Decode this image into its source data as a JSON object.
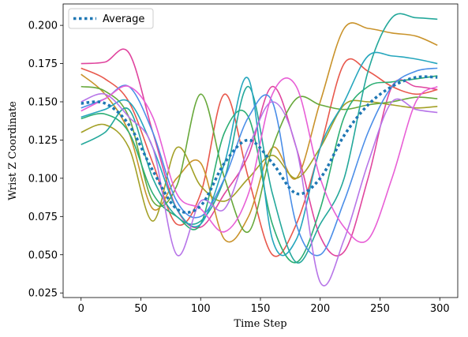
{
  "chart_data": {
    "type": "line",
    "title": "",
    "xlabel": "Time Step",
    "ylabel": "Wrist Z Coordinate",
    "xlim": [
      -15,
      315
    ],
    "ylim": [
      0.022,
      0.214
    ],
    "xticks": [
      0,
      50,
      100,
      150,
      200,
      250,
      300
    ],
    "yticks": [
      0.025,
      0.05,
      0.075,
      0.1,
      0.125,
      0.15,
      0.175,
      0.2
    ],
    "ytick_labels": [
      "0.025",
      "0.050",
      "0.075",
      "0.100",
      "0.125",
      "0.150",
      "0.175",
      "0.200"
    ],
    "grid": false,
    "legend": {
      "placement": "top-left",
      "entries": [
        "Average"
      ]
    },
    "average": {
      "name": "Average",
      "color": "#1f77b4",
      "style": "dotted",
      "x": [
        0,
        20,
        40,
        60,
        80,
        100,
        120,
        140,
        160,
        180,
        200,
        220,
        240,
        260,
        280,
        298
      ],
      "y": [
        0.149,
        0.149,
        0.135,
        0.105,
        0.08,
        0.082,
        0.11,
        0.125,
        0.11,
        0.09,
        0.1,
        0.128,
        0.148,
        0.16,
        0.166,
        0.166
      ]
    },
    "series": [
      {
        "color": "#e0459e",
        "x": [
          0,
          20,
          40,
          60,
          80,
          100,
          120,
          140,
          160,
          180,
          200,
          220,
          240,
          260,
          280,
          298
        ],
        "y": [
          0.175,
          0.176,
          0.182,
          0.13,
          0.08,
          0.068,
          0.09,
          0.115,
          0.16,
          0.12,
          0.062,
          0.052,
          0.1,
          0.16,
          0.16,
          0.158
        ]
      },
      {
        "color": "#e8584c",
        "x": [
          0,
          20,
          40,
          60,
          80,
          100,
          120,
          140,
          160,
          180,
          200,
          220,
          240,
          260,
          280,
          298
        ],
        "y": [
          0.172,
          0.165,
          0.15,
          0.11,
          0.07,
          0.09,
          0.155,
          0.1,
          0.05,
          0.07,
          0.12,
          0.175,
          0.17,
          0.16,
          0.155,
          0.158
        ]
      },
      {
        "color": "#c9932b",
        "x": [
          0,
          20,
          40,
          60,
          80,
          100,
          120,
          140,
          160,
          180,
          200,
          220,
          240,
          260,
          280,
          298
        ],
        "y": [
          0.168,
          0.155,
          0.13,
          0.08,
          0.1,
          0.11,
          0.06,
          0.075,
          0.12,
          0.1,
          0.15,
          0.198,
          0.198,
          0.195,
          0.193,
          0.187
        ]
      },
      {
        "color": "#a3a026",
        "x": [
          0,
          20,
          40,
          60,
          80,
          100,
          120,
          140,
          160,
          180,
          200,
          220,
          240,
          260,
          280,
          298
        ],
        "y": [
          0.13,
          0.135,
          0.12,
          0.072,
          0.12,
          0.095,
          0.085,
          0.1,
          0.115,
          0.1,
          0.12,
          0.148,
          0.15,
          0.148,
          0.146,
          0.147
        ]
      },
      {
        "color": "#67a83a",
        "x": [
          0,
          20,
          40,
          60,
          80,
          100,
          120,
          140,
          160,
          180,
          200,
          220,
          240,
          260,
          280,
          298
        ],
        "y": [
          0.16,
          0.157,
          0.14,
          0.085,
          0.095,
          0.155,
          0.1,
          0.065,
          0.12,
          0.152,
          0.148,
          0.145,
          0.148,
          0.15,
          0.153,
          0.152
        ]
      },
      {
        "color": "#2bae73",
        "x": [
          0,
          20,
          40,
          60,
          80,
          100,
          120,
          140,
          160,
          180,
          200,
          220,
          240,
          260,
          280,
          298
        ],
        "y": [
          0.139,
          0.142,
          0.13,
          0.09,
          0.075,
          0.07,
          0.13,
          0.14,
          0.07,
          0.045,
          0.08,
          0.14,
          0.16,
          0.163,
          0.165,
          0.167
        ]
      },
      {
        "color": "#24a89b",
        "x": [
          0,
          20,
          40,
          60,
          80,
          100,
          120,
          140,
          160,
          180,
          200,
          220,
          240,
          260,
          280,
          298
        ],
        "y": [
          0.122,
          0.13,
          0.145,
          0.1,
          0.075,
          0.072,
          0.1,
          0.16,
          0.09,
          0.045,
          0.07,
          0.1,
          0.17,
          0.205,
          0.205,
          0.204
        ]
      },
      {
        "color": "#25a6bd",
        "x": [
          0,
          20,
          40,
          60,
          80,
          100,
          120,
          140,
          160,
          180,
          200,
          220,
          240,
          260,
          280,
          298
        ],
        "y": [
          0.14,
          0.145,
          0.15,
          0.12,
          0.08,
          0.07,
          0.11,
          0.165,
          0.06,
          0.06,
          0.12,
          0.15,
          0.18,
          0.18,
          0.178,
          0.175
        ]
      },
      {
        "color": "#4b8ee8",
        "x": [
          0,
          20,
          40,
          60,
          80,
          100,
          120,
          140,
          160,
          180,
          200,
          220,
          240,
          260,
          280,
          298
        ],
        "y": [
          0.146,
          0.152,
          0.16,
          0.13,
          0.085,
          0.075,
          0.1,
          0.14,
          0.15,
          0.07,
          0.05,
          0.085,
          0.13,
          0.16,
          0.17,
          0.172
        ]
      },
      {
        "color": "#b775e8",
        "x": [
          0,
          20,
          40,
          60,
          80,
          100,
          120,
          140,
          160,
          180,
          200,
          220,
          240,
          260,
          280,
          298
        ],
        "y": [
          0.15,
          0.155,
          0.14,
          0.12,
          0.05,
          0.085,
          0.08,
          0.12,
          0.15,
          0.12,
          0.032,
          0.06,
          0.11,
          0.15,
          0.145,
          0.143
        ]
      },
      {
        "color": "#e85fd6",
        "x": [
          0,
          20,
          40,
          60,
          80,
          100,
          120,
          140,
          160,
          180,
          200,
          220,
          240,
          260,
          280,
          298
        ],
        "y": [
          0.144,
          0.152,
          0.16,
          0.14,
          0.09,
          0.08,
          0.065,
          0.09,
          0.155,
          0.16,
          0.1,
          0.068,
          0.06,
          0.1,
          0.15,
          0.16
        ]
      }
    ]
  }
}
